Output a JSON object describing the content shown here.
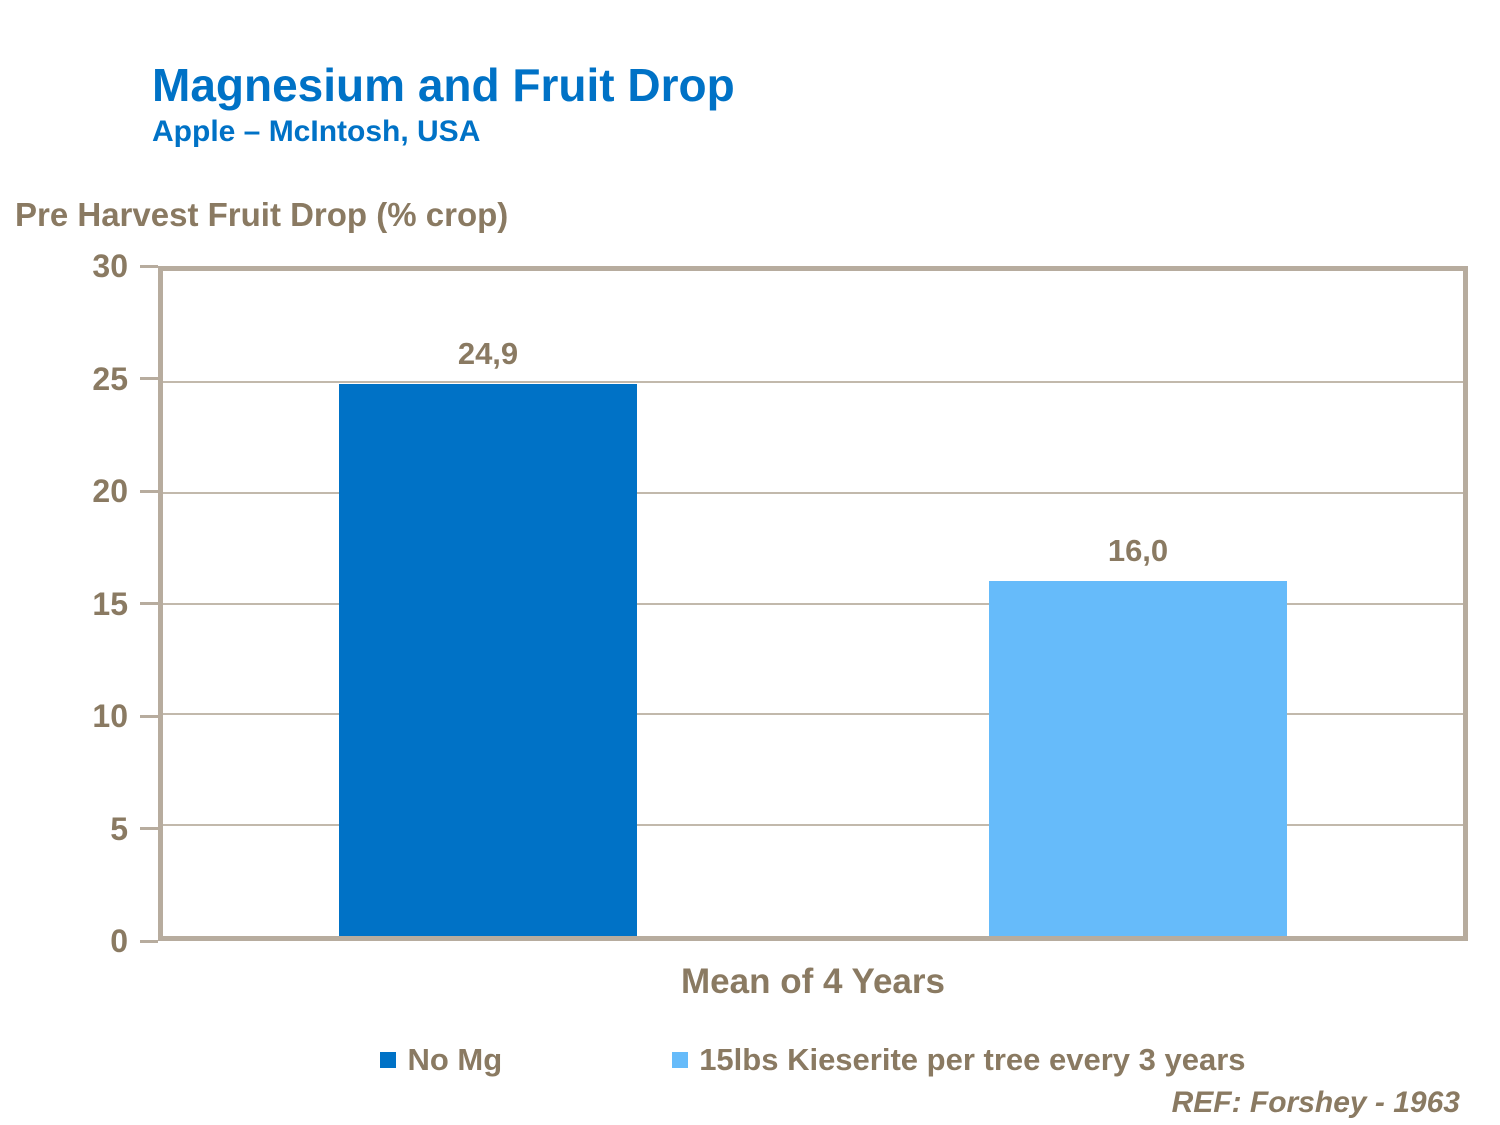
{
  "header": {
    "title": "Magnesium and Fruit Drop",
    "subtitle": "Apple – McIntosh, USA"
  },
  "chart_data": {
    "type": "bar",
    "title": "Magnesium and Fruit Drop",
    "subtitle": "Apple – McIntosh, USA",
    "axis_title": "Pre Harvest Fruit Drop (% crop)",
    "categories": [
      "Mean of 4 Years"
    ],
    "series": [
      {
        "name": "No Mg",
        "value": 24.9,
        "label": "24,9",
        "color": "#0072C6"
      },
      {
        "name": "15lbs Kieserite per tree every 3 years",
        "value": 16.0,
        "label": "16,0",
        "color": "#66BBFA"
      }
    ],
    "ylim": [
      0,
      30
    ],
    "yticks": [
      0,
      5,
      10,
      15,
      20,
      25,
      30
    ],
    "grid": true,
    "legend_position": "bottom"
  },
  "footer": {
    "reference": "REF: Forshey - 1963"
  },
  "colors": {
    "accent_blue": "#0072C6",
    "light_blue": "#66BBFA",
    "taupe_text": "#8A7A62",
    "frame": "#B7AC9E",
    "gridline": "#C2B9AC"
  }
}
